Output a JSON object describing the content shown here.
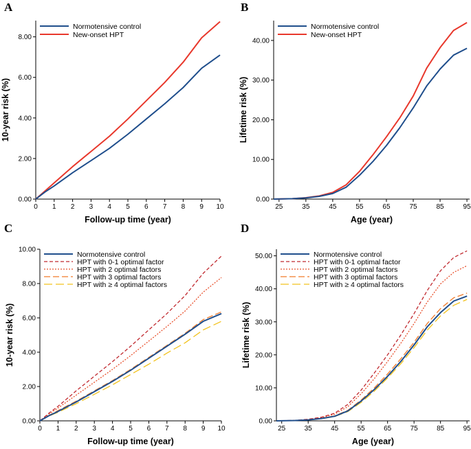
{
  "figure": {
    "description_letters": [
      "A",
      "B",
      "C",
      "D"
    ]
  },
  "chart_data": [
    {
      "panel": "A",
      "type": "line",
      "xlabel": "Follow-up time (year)",
      "ylabel": "10-year risk (%)",
      "xlim": [
        0,
        10
      ],
      "ylim": [
        0,
        8.8
      ],
      "xticks": [
        0,
        1,
        2,
        3,
        4,
        5,
        6,
        7,
        8,
        9,
        10
      ],
      "xtick_labels": [
        "0",
        "1",
        "2",
        "3",
        "4",
        "5",
        "6",
        "7",
        "8",
        "9",
        "10"
      ],
      "yticks": [
        0,
        2,
        4,
        6,
        8
      ],
      "ytick_labels": [
        "0.00",
        "2.00",
        "4.00",
        "6.00",
        "8.00"
      ],
      "legend": "top-left",
      "series": [
        {
          "name": "Normotensive control",
          "color": "#1f4e8c",
          "dash": "solid",
          "x": [
            0,
            0.5,
            1,
            2,
            3,
            4,
            5,
            6,
            7,
            8,
            9,
            10
          ],
          "y": [
            0,
            0.35,
            0.65,
            1.3,
            1.9,
            2.5,
            3.2,
            3.95,
            4.7,
            5.5,
            6.45,
            7.1
          ]
        },
        {
          "name": "New-onset HPT",
          "color": "#e8382c",
          "dash": "solid",
          "x": [
            0,
            0.5,
            1,
            2,
            3,
            4,
            5,
            6,
            7,
            8,
            9,
            10
          ],
          "y": [
            0,
            0.4,
            0.8,
            1.6,
            2.35,
            3.1,
            3.95,
            4.85,
            5.75,
            6.75,
            7.95,
            8.75
          ]
        }
      ]
    },
    {
      "panel": "B",
      "type": "line",
      "xlabel": "Age (year)",
      "ylabel": "Lifetime risk (%)",
      "xlim": [
        23,
        96
      ],
      "ylim": [
        0,
        45
      ],
      "xticks": [
        25,
        35,
        45,
        55,
        65,
        75,
        85,
        95
      ],
      "xtick_labels": [
        "25",
        "35",
        "45",
        "55",
        "65",
        "75",
        "85",
        "95"
      ],
      "yticks": [
        0,
        10,
        20,
        30,
        40
      ],
      "ytick_labels": [
        "0.00",
        "10.00",
        "20.00",
        "30.00",
        "40.00"
      ],
      "legend": "top-left",
      "series": [
        {
          "name": "Normotensive control",
          "color": "#1f4e8c",
          "dash": "solid",
          "x": [
            23,
            30,
            35,
            40,
            45,
            50,
            55,
            60,
            65,
            70,
            75,
            80,
            85,
            90,
            95
          ],
          "y": [
            0,
            0.1,
            0.3,
            0.7,
            1.4,
            3.0,
            6.0,
            9.5,
            13.5,
            18.0,
            23.0,
            28.5,
            32.8,
            36.3,
            38.0
          ]
        },
        {
          "name": "New-onset HPT",
          "color": "#e8382c",
          "dash": "solid",
          "x": [
            23,
            30,
            35,
            40,
            45,
            50,
            55,
            60,
            65,
            70,
            75,
            80,
            85,
            90,
            95
          ],
          "y": [
            0,
            0.1,
            0.35,
            0.8,
            1.7,
            3.6,
            7.0,
            11.2,
            15.7,
            20.5,
            26.0,
            33.0,
            38.2,
            42.5,
            44.5
          ]
        }
      ]
    },
    {
      "panel": "C",
      "type": "line",
      "xlabel": "Follow-up time (year)",
      "ylabel": "10-year risk (%)",
      "xlim": [
        0,
        10
      ],
      "ylim": [
        0,
        10
      ],
      "xticks": [
        0,
        1,
        2,
        3,
        4,
        5,
        6,
        7,
        8,
        9,
        10
      ],
      "xtick_labels": [
        "0",
        "1",
        "2",
        "3",
        "4",
        "5",
        "6",
        "7",
        "8",
        "9",
        "10"
      ],
      "yticks": [
        0,
        2,
        4,
        6,
        8,
        10
      ],
      "ytick_labels": [
        "0.00",
        "2.00",
        "4.00",
        "6.00",
        "8.00",
        "10.00"
      ],
      "legend": "top-left",
      "series": [
        {
          "name": "Normotensive control",
          "color": "#1f4e8c",
          "dash": "solid",
          "x": [
            0,
            0.5,
            1,
            2,
            3,
            4,
            5,
            6,
            7,
            8,
            9,
            10
          ],
          "y": [
            0,
            0.3,
            0.55,
            1.1,
            1.7,
            2.3,
            2.95,
            3.65,
            4.35,
            5.05,
            5.8,
            6.25
          ]
        },
        {
          "name": "HPT with 0-1 optimal factor",
          "color": "#c0282e",
          "dash": "5,3",
          "x": [
            0,
            0.5,
            1,
            2,
            3,
            4,
            5,
            6,
            7,
            8,
            9,
            10
          ],
          "y": [
            0,
            0.45,
            0.85,
            1.75,
            2.6,
            3.45,
            4.35,
            5.3,
            6.25,
            7.3,
            8.6,
            9.6
          ]
        },
        {
          "name": "HPT with 2 optimal factors",
          "color": "#e8502c",
          "dash": "2,2",
          "x": [
            0,
            0.5,
            1,
            2,
            3,
            4,
            5,
            6,
            7,
            8,
            9,
            10
          ],
          "y": [
            0,
            0.4,
            0.75,
            1.5,
            2.25,
            3.0,
            3.8,
            4.65,
            5.5,
            6.4,
            7.5,
            8.35
          ]
        },
        {
          "name": "HPT with 3 optimal factors",
          "color": "#f07a28",
          "dash": "9,4",
          "x": [
            0,
            0.5,
            1,
            2,
            3,
            4,
            5,
            6,
            7,
            8,
            9,
            10
          ],
          "y": [
            0,
            0.32,
            0.6,
            1.15,
            1.75,
            2.35,
            3.0,
            3.7,
            4.4,
            5.1,
            5.9,
            6.35
          ]
        },
        {
          "name": "HPT with ≥4 optimal factors",
          "color": "#f2c21c",
          "dash": "12,5",
          "x": [
            0,
            0.5,
            1,
            2,
            3,
            4,
            5,
            6,
            7,
            8,
            9,
            10
          ],
          "y": [
            0,
            0.28,
            0.5,
            1.0,
            1.55,
            2.1,
            2.7,
            3.3,
            3.95,
            4.55,
            5.3,
            5.8
          ]
        }
      ],
      "legend_labels": [
        "Normotensive control",
        "HPT with 0-1 optimal factor",
        "HPT with 2 optimal factors",
        "HPT with 3 optimal factors",
        "HPT with  ≥ 4 optimal factors"
      ]
    },
    {
      "panel": "D",
      "type": "line",
      "xlabel": "Age (year)",
      "ylabel": "Lifetime risk (%)",
      "xlim": [
        23,
        96
      ],
      "ylim": [
        0,
        52
      ],
      "xticks": [
        25,
        35,
        45,
        55,
        65,
        75,
        85,
        95
      ],
      "xtick_labels": [
        "25",
        "35",
        "45",
        "55",
        "65",
        "75",
        "85",
        "95"
      ],
      "yticks": [
        0,
        10,
        20,
        30,
        40,
        50
      ],
      "ytick_labels": [
        "0.00",
        "10.00",
        "20.00",
        "30.00",
        "40.00",
        "50.00"
      ],
      "legend": "top-left",
      "series": [
        {
          "name": "Normotensive control",
          "color": "#1f4e8c",
          "dash": "solid",
          "x": [
            23,
            30,
            35,
            40,
            45,
            50,
            55,
            60,
            65,
            70,
            75,
            80,
            85,
            90,
            95
          ],
          "y": [
            0,
            0.1,
            0.3,
            0.7,
            1.4,
            3.0,
            6.0,
            9.5,
            13.5,
            18.0,
            23.0,
            28.5,
            32.8,
            36.3,
            37.8
          ]
        },
        {
          "name": "HPT with 0-1 optimal factor",
          "color": "#c0282e",
          "dash": "5,3",
          "x": [
            23,
            30,
            35,
            40,
            45,
            50,
            55,
            60,
            65,
            70,
            75,
            80,
            85,
            90,
            95
          ],
          "y": [
            0,
            0.15,
            0.5,
            1.1,
            2.3,
            5.0,
            9.3,
            14.5,
            20.0,
            26.0,
            32.5,
            39.5,
            45.5,
            49.5,
            51.5
          ]
        },
        {
          "name": "HPT with 2 optimal factors",
          "color": "#e8502c",
          "dash": "2,2",
          "x": [
            23,
            30,
            35,
            40,
            45,
            50,
            55,
            60,
            65,
            70,
            75,
            80,
            85,
            90,
            95
          ],
          "y": [
            0,
            0.12,
            0.42,
            0.95,
            2.0,
            4.3,
            8.2,
            12.8,
            18.0,
            23.5,
            29.5,
            36.0,
            41.5,
            45.0,
            47.0
          ]
        },
        {
          "name": "HPT with 3 optimal factors",
          "color": "#f07a28",
          "dash": "9,4",
          "x": [
            23,
            30,
            35,
            40,
            45,
            50,
            55,
            60,
            65,
            70,
            75,
            80,
            85,
            90,
            95
          ],
          "y": [
            0,
            0.1,
            0.32,
            0.75,
            1.5,
            3.2,
            6.3,
            10.0,
            14.2,
            18.8,
            23.8,
            29.5,
            34.0,
            37.3,
            38.7
          ]
        },
        {
          "name": "HPT with ≥4 optimal factors",
          "color": "#f2c21c",
          "dash": "12,5",
          "x": [
            23,
            30,
            35,
            40,
            45,
            50,
            55,
            60,
            65,
            70,
            75,
            80,
            85,
            90,
            95
          ],
          "y": [
            0,
            0.08,
            0.28,
            0.65,
            1.3,
            2.8,
            5.6,
            9.0,
            13.0,
            17.3,
            22.2,
            27.5,
            31.8,
            35.0,
            36.8
          ]
        }
      ],
      "legend_labels": [
        "Normotensive control",
        "HPT with 0-1 optimal factor",
        "HPT with 2 optimal factors",
        "HPT with 3 optimal factors",
        "HPT with  ≥ 4 optimal factors"
      ]
    }
  ]
}
